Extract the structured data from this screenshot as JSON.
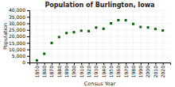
{
  "chart_data": {
    "type": "scatter",
    "title": "Population of Burlington, Iowa",
    "xlabel": "Census Year",
    "ylabel": "Population",
    "x": [
      1850,
      1860,
      1870,
      1880,
      1890,
      1900,
      1910,
      1920,
      1930,
      1940,
      1950,
      1960,
      1970,
      1980,
      1990,
      2000,
      2010,
      2020
    ],
    "values": [
      1565,
      6706,
      14930,
      19450,
      22565,
      23201,
      24324,
      24057,
      26755,
      25832,
      30001,
      32430,
      32366,
      29529,
      27208,
      26839,
      25663,
      24512
    ],
    "color": "#006400",
    "marker": "square",
    "xlim": [
      1840,
      2030
    ],
    "xticks": [
      1850,
      1860,
      1870,
      1880,
      1890,
      1900,
      1910,
      1920,
      1930,
      1940,
      1950,
      1960,
      1970,
      1980,
      1990,
      2000,
      2010,
      2020
    ],
    "ylim": [
      0,
      40000
    ],
    "yticks": [
      0,
      {
        "value": 5000,
        "label": "5,000"
      },
      {
        "value": 10000,
        "label": "10,000"
      },
      {
        "value": 15000,
        "label": "15,000"
      },
      {
        "value": 20000,
        "label": "20,000"
      },
      {
        "value": 25000,
        "label": "25,000"
      },
      {
        "value": 30000,
        "label": "30,000"
      },
      {
        "value": 35000,
        "label": "35,000"
      },
      {
        "value": 40000,
        "label": "40,000"
      }
    ],
    "grid": true
  }
}
